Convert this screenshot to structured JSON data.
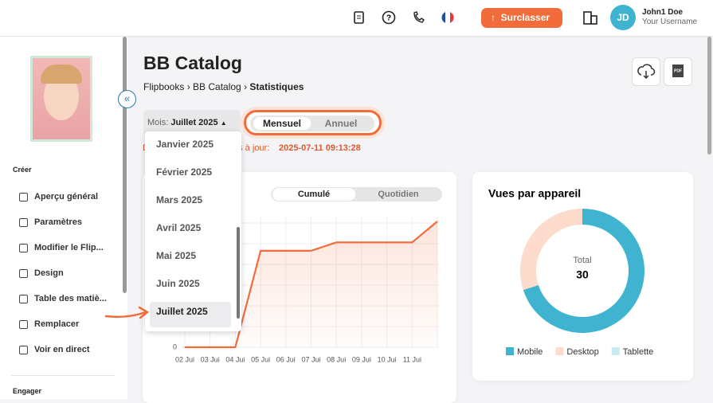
{
  "topbar": {
    "upgrade_button": "Surclasser",
    "avatar_initials": "JD",
    "user_name": "John1 Doe",
    "user_handle": "Your Username"
  },
  "sidebar": {
    "create_title": "Créer",
    "items": [
      "Aperçu général",
      "Paramètres",
      "Modifier le Flip...",
      "Design",
      "Table des matiè...",
      "Remplacer",
      "Voir en direct"
    ],
    "engage_title": "Engager"
  },
  "header": {
    "title": "BB Catalog",
    "breadcrumb": [
      "Flipbooks",
      "BB Catalog",
      "Statistiques"
    ]
  },
  "filters": {
    "month_label": "Mois:",
    "month_value": "Juillet 2025",
    "period_options": [
      "Mensuel",
      "Annuel"
    ],
    "updated_prefix": "D",
    "updated_suffix": "es à jour:",
    "updated_value": "2025-07-11 09:13:28",
    "month_options": [
      "Janvier 2025",
      "Février 2025",
      "Mars 2025",
      "Avril 2025",
      "Mai 2025",
      "Juin 2025",
      "Juillet 2025"
    ]
  },
  "chart_data": [
    {
      "type": "line",
      "modes": [
        "Cumulé",
        "Quotidien"
      ],
      "categories": [
        "02 Jui",
        "03 Jui",
        "04 Jui",
        "05 Jui",
        "06 Jui",
        "07 Jui",
        "08 Jui",
        "09 Jui",
        "10 Jui",
        "11 Jui",
        null
      ],
      "values": [
        0,
        0,
        0,
        23,
        23,
        23,
        25,
        25,
        25,
        25,
        30
      ],
      "color": "#f26b3a",
      "ylim": [
        0,
        30
      ],
      "yticks": [
        0
      ]
    },
    {
      "type": "pie",
      "title": "Vues par appareil",
      "center_label": "Total",
      "center_value": 30,
      "categories": [
        "Mobile",
        "Desktop",
        "Tablette"
      ],
      "values": [
        21,
        9,
        0
      ],
      "colors": [
        "#3fb3cf",
        "#fddccd",
        "#c9ecf3"
      ]
    }
  ]
}
